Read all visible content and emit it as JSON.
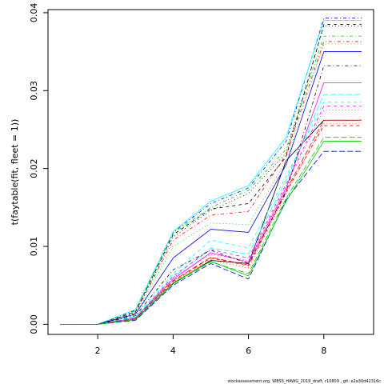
{
  "chart_data": {
    "type": "line",
    "y_label": "t(faytable(fit, fleet = 1))",
    "footer": "stockassessment.org, WBSS_HAWG_2019_draft, r10809 , git: e2a30d42316c",
    "x": [
      1,
      2,
      3,
      4,
      5,
      6,
      7,
      8,
      9
    ],
    "xlim": [
      0.68,
      9.32
    ],
    "xticks": [
      2,
      4,
      6,
      8
    ],
    "ylim": [
      -0.0013,
      0.0404
    ],
    "yticks": [
      {
        "value": 0,
        "label": "0.00"
      },
      {
        "value": 0.01,
        "label": "0.01"
      },
      {
        "value": 0.02,
        "label": "0.02"
      },
      {
        "value": 0.03,
        "label": "0.03"
      },
      {
        "value": 0.04,
        "label": "0.04"
      }
    ],
    "series": [
      {
        "color": "#000000",
        "lty": 1,
        "values": [
          0,
          0,
          0.0006,
          0.0052,
          0.0082,
          0.0078,
          0.021,
          0.0262,
          0.0262
        ]
      },
      {
        "color": "#ff0000",
        "lty": 2,
        "values": [
          0,
          0,
          0.0007,
          0.0055,
          0.0085,
          0.0075,
          0.017,
          0.0255,
          0.0255
        ]
      },
      {
        "color": "#00cd00",
        "lty": 3,
        "values": [
          0,
          0,
          0.0012,
          0.01,
          0.013,
          0.0128,
          0.021,
          0.036,
          0.036
        ]
      },
      {
        "color": "#0000ff",
        "lty": 4,
        "values": [
          0,
          0,
          0.0018,
          0.0118,
          0.0155,
          0.0175,
          0.0235,
          0.0393,
          0.0393
        ]
      },
      {
        "color": "#00ffff",
        "lty": 5,
        "values": [
          0,
          0,
          0.0009,
          0.006,
          0.0098,
          0.009,
          0.0185,
          0.0295,
          0.0295
        ]
      },
      {
        "color": "#ff00ff",
        "lty": 1,
        "values": [
          0,
          0,
          0.0008,
          0.0058,
          0.0092,
          0.008,
          0.0175,
          0.031,
          0.031
        ]
      },
      {
        "color": "#000000",
        "lty": 2,
        "values": [
          0,
          0,
          0.0016,
          0.0115,
          0.0148,
          0.0155,
          0.0215,
          0.0385,
          0.0385
        ]
      },
      {
        "color": "#ff0000",
        "lty": 3,
        "values": [
          0,
          0,
          0.0006,
          0.0054,
          0.0083,
          0.0072,
          0.0168,
          0.0258,
          0.0258
        ]
      },
      {
        "color": "#00cd00",
        "lty": 4,
        "values": [
          0,
          0,
          0.0017,
          0.0117,
          0.015,
          0.0172,
          0.0225,
          0.037,
          0.037
        ]
      },
      {
        "color": "#0000ff",
        "lty": 5,
        "values": [
          0,
          0,
          0.0005,
          0.005,
          0.0078,
          0.0058,
          0.016,
          0.0222,
          0.0222
        ]
      },
      {
        "color": "#00ffff",
        "lty": 1,
        "values": [
          0,
          0,
          0.0019,
          0.0119,
          0.0158,
          0.0178,
          0.024,
          0.039,
          0.039
        ]
      },
      {
        "color": "#ff00ff",
        "lty": 2,
        "values": [
          0,
          0,
          0.0007,
          0.0062,
          0.0096,
          0.0085,
          0.018,
          0.028,
          0.028
        ]
      },
      {
        "color": "#000000",
        "lty": 3,
        "values": [
          0,
          0,
          0.0015,
          0.0112,
          0.0146,
          0.0168,
          0.022,
          0.0383,
          0.0383
        ]
      },
      {
        "color": "#ff0000",
        "lty": 4,
        "values": [
          0,
          0,
          0.0014,
          0.0108,
          0.014,
          0.0145,
          0.0218,
          0.0363,
          0.0363
        ]
      },
      {
        "color": "#00cd00",
        "lty": 5,
        "values": [
          0,
          0,
          0.0006,
          0.0052,
          0.008,
          0.0065,
          0.0162,
          0.024,
          0.024
        ]
      },
      {
        "color": "#0000ff",
        "lty": 1,
        "values": [
          0,
          0,
          0.0013,
          0.0085,
          0.0122,
          0.0118,
          0.0205,
          0.035,
          0.035
        ]
      },
      {
        "color": "#00ffff",
        "lty": 2,
        "values": [
          0,
          0,
          0.001,
          0.0065,
          0.0108,
          0.0098,
          0.019,
          0.0285,
          0.0285
        ]
      },
      {
        "color": "#ff00ff",
        "lty": 3,
        "values": [
          0,
          0,
          0.0008,
          0.006,
          0.009,
          0.0082,
          0.0178,
          0.0275,
          0.0275
        ]
      },
      {
        "color": "#000000",
        "lty": 4,
        "values": [
          0,
          0,
          0.0011,
          0.007,
          0.0095,
          0.0078,
          0.017,
          0.0332,
          0.0332
        ]
      },
      {
        "color": "#ff0000",
        "lty": 5,
        "values": [
          0,
          0,
          0.0007,
          0.0056,
          0.0086,
          0.0076,
          0.0172,
          0.0262,
          0.0262
        ]
      },
      {
        "color": "#00cd00",
        "lty": 1,
        "values": [
          0,
          0,
          0.0006,
          0.0053,
          0.0081,
          0.0062,
          0.0158,
          0.0235,
          0.0235
        ]
      }
    ]
  }
}
